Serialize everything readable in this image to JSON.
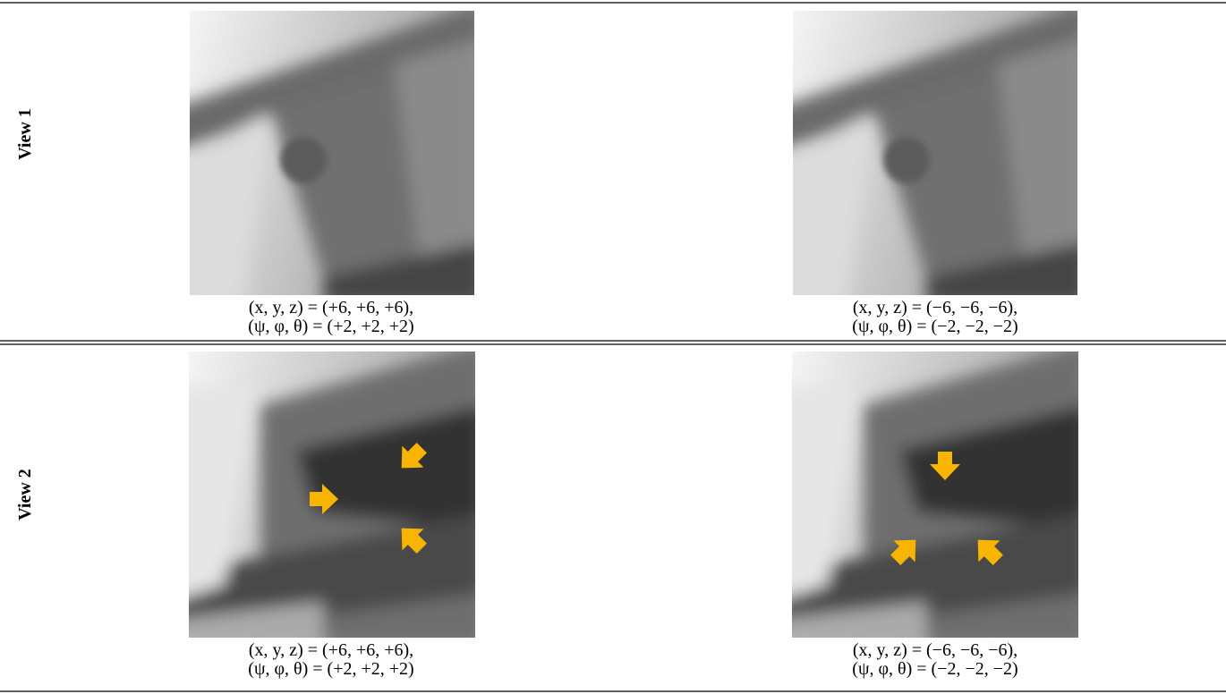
{
  "rows": [
    {
      "label": "View 1",
      "cells": [
        {
          "caption": [
            "(x, y, z) = (+6, +6, +6),",
            "(ψ, φ, θ) = (+2, +2, +2)"
          ]
        },
        {
          "caption": [
            "(x, y, z) = (−6, −6, −6),",
            "(ψ, φ, θ) = (−2, −2, −2)"
          ]
        }
      ]
    },
    {
      "label": "View 2",
      "cells": [
        {
          "caption": [
            "(x, y, z) = (+6, +6, +6),",
            "(ψ, φ, θ) = (+2, +2, +2)"
          ]
        },
        {
          "caption": [
            "(x, y, z) = (−6, −6, −6),",
            "(ψ, φ, θ) = (−2, −2, −2)"
          ]
        }
      ]
    }
  ]
}
